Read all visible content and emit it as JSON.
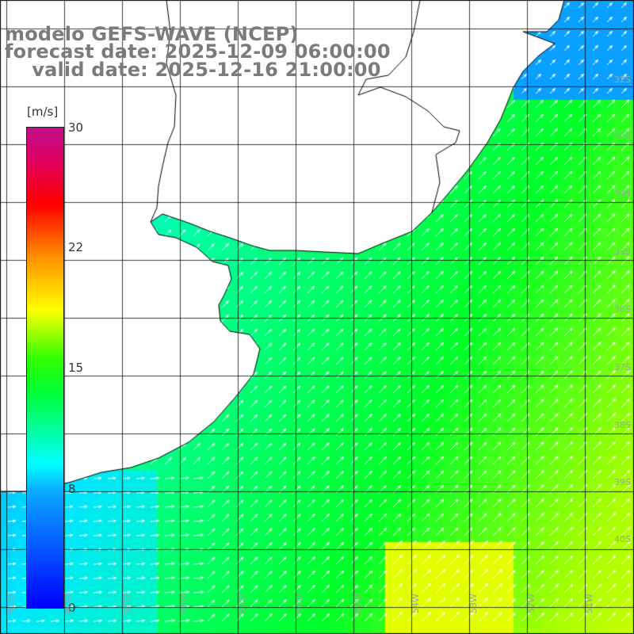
{
  "title": {
    "line1": "modelo GEFS-WAVE (NCEP)",
    "line2": "forecast date: 2025-12-09 06:00:00",
    "line3": "    valid date: 2025-12-16 21:00:00"
  },
  "colorbar": {
    "unit": "[m/s]",
    "ticks": [
      {
        "label": "30",
        "value": 30
      },
      {
        "label": "22",
        "value": 22
      },
      {
        "label": "15",
        "value": 15
      },
      {
        "label": "8",
        "value": 8
      },
      {
        "label": "0",
        "value": 0
      }
    ],
    "range": [
      0,
      30
    ]
  },
  "lat_labels": [
    "32S",
    "33S",
    "34S",
    "35S",
    "36S",
    "37S",
    "38S",
    "39S",
    "40S"
  ],
  "lon_labels": [
    "61W",
    "60W",
    "59W",
    "58W",
    "57W",
    "56W",
    "55W",
    "54W",
    "53W",
    "52W",
    "51W"
  ],
  "colors": {
    "land": "#ffffff",
    "coast": "#000000",
    "grid": "#000000",
    "text": "#7b7b7b",
    "arrow": "#ffffff"
  },
  "field": {
    "variable": "wind speed",
    "units": "m/s",
    "vmin": 0,
    "vmax": 30
  }
}
